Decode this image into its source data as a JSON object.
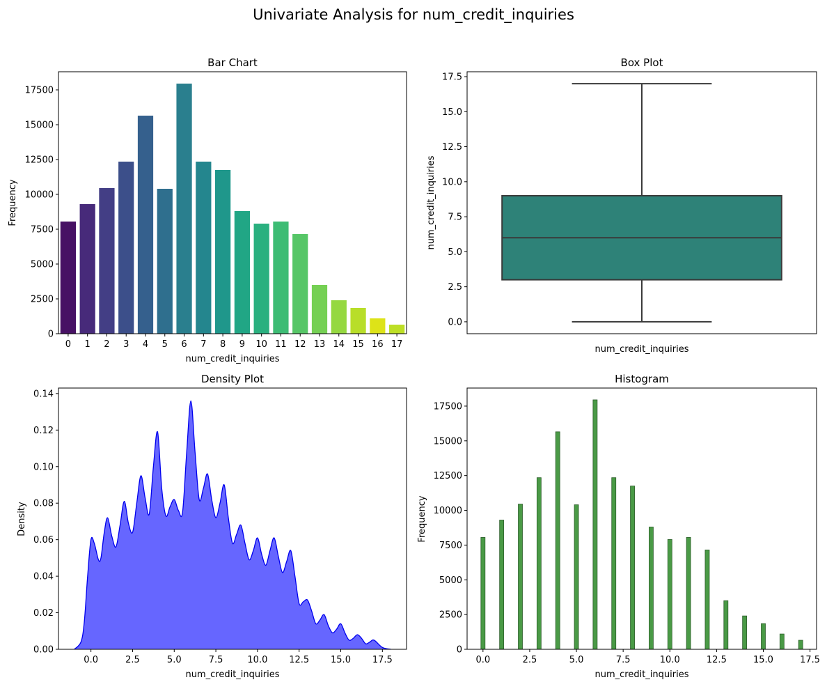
{
  "figure": {
    "suptitle": "Univariate Analysis for num_credit_inquiries"
  },
  "colors": {
    "viridis": [
      "#471164",
      "#472a7a",
      "#433e85",
      "#3c4f8a",
      "#35608d",
      "#2f6f8e",
      "#2a7f8e",
      "#24868e",
      "#1f978b",
      "#21a685",
      "#2ab07f",
      "#3dbc74",
      "#56c667",
      "#75d054",
      "#95d840",
      "#b8de29",
      "#dde318",
      "#bddf26"
    ],
    "box_fill": "#2e8278",
    "box_edge": "#3a3a3a",
    "density_fill": "#6666ff",
    "density_line": "#0000ee",
    "hist_fill": "#4a9a46",
    "hist_edge": "#2d5e2b"
  },
  "chart_data": [
    {
      "id": "bar",
      "type": "bar",
      "title": "Bar Chart",
      "xlabel": "num_credit_inquiries",
      "ylabel": "Frequency",
      "categories": [
        "0",
        "1",
        "2",
        "3",
        "4",
        "5",
        "6",
        "7",
        "8",
        "9",
        "10",
        "11",
        "12",
        "13",
        "14",
        "15",
        "16",
        "17"
      ],
      "values": [
        8050,
        9300,
        10450,
        12350,
        15650,
        10400,
        17950,
        12350,
        11750,
        8800,
        7900,
        8050,
        7150,
        3500,
        2400,
        1850,
        1100,
        650
      ],
      "ylim": [
        0,
        18800
      ],
      "yticks": [
        0,
        2500,
        5000,
        7500,
        10000,
        12500,
        15000,
        17500
      ]
    },
    {
      "id": "box",
      "type": "box",
      "title": "Box Plot",
      "xlabel": "num_credit_inquiries",
      "ylabel": "num_credit_inquiries",
      "min": 0,
      "q1": 3,
      "median": 6,
      "q3": 9,
      "max": 17,
      "ylim": [
        -0.85,
        17.85
      ],
      "yticks": [
        0.0,
        2.5,
        5.0,
        7.5,
        10.0,
        12.5,
        15.0,
        17.5
      ]
    },
    {
      "id": "density",
      "type": "area",
      "title": "Density Plot",
      "xlabel": "num_credit_inquiries",
      "ylabel": "Density",
      "x": [
        -1,
        -0.6,
        -0.4,
        -0.2,
        0,
        0.2,
        0.45,
        0.6,
        0.8,
        1,
        1.25,
        1.5,
        1.75,
        2,
        2.25,
        2.5,
        2.75,
        3,
        3.25,
        3.5,
        3.75,
        4,
        4.25,
        4.5,
        4.75,
        5,
        5.25,
        5.5,
        5.75,
        6,
        6.25,
        6.5,
        6.75,
        7,
        7.25,
        7.5,
        7.75,
        8,
        8.25,
        8.5,
        8.75,
        9,
        9.25,
        9.5,
        9.75,
        10,
        10.25,
        10.5,
        10.75,
        11,
        11.25,
        11.5,
        11.75,
        12,
        12.25,
        12.5,
        12.75,
        13,
        13.25,
        13.5,
        13.75,
        14,
        14.25,
        14.5,
        14.75,
        15,
        15.25,
        15.5,
        15.75,
        16,
        16.25,
        16.5,
        16.75,
        17,
        17.5,
        18
      ],
      "y": [
        0,
        0.004,
        0.015,
        0.04,
        0.06,
        0.058,
        0.049,
        0.05,
        0.064,
        0.072,
        0.062,
        0.056,
        0.068,
        0.081,
        0.069,
        0.064,
        0.08,
        0.095,
        0.083,
        0.074,
        0.1,
        0.119,
        0.088,
        0.073,
        0.078,
        0.082,
        0.076,
        0.075,
        0.108,
        0.136,
        0.108,
        0.082,
        0.088,
        0.096,
        0.082,
        0.072,
        0.08,
        0.09,
        0.072,
        0.058,
        0.063,
        0.068,
        0.058,
        0.049,
        0.054,
        0.061,
        0.052,
        0.046,
        0.054,
        0.061,
        0.051,
        0.042,
        0.048,
        0.054,
        0.04,
        0.025,
        0.026,
        0.027,
        0.021,
        0.014,
        0.016,
        0.019,
        0.013,
        0.009,
        0.011,
        0.014,
        0.009,
        0.005,
        0.006,
        0.008,
        0.006,
        0.003,
        0.004,
        0.005,
        0.001,
        0
      ],
      "xlim": [
        -1.95,
        18.95
      ],
      "ylim": [
        0,
        0.143
      ],
      "xticks": [
        0.0,
        2.5,
        5.0,
        7.5,
        10.0,
        12.5,
        15.0,
        17.5
      ],
      "yticks": [
        0.0,
        0.02,
        0.04,
        0.06,
        0.08,
        0.1,
        0.12,
        0.14
      ]
    },
    {
      "id": "hist",
      "type": "bar",
      "title": "Histogram",
      "xlabel": "num_credit_inquiries",
      "ylabel": "Frequency",
      "x": [
        0,
        1,
        2,
        3,
        4,
        5,
        6,
        7,
        8,
        9,
        10,
        11,
        12,
        13,
        14,
        15,
        16,
        17
      ],
      "values": [
        8050,
        9300,
        10450,
        12350,
        15650,
        10400,
        17950,
        12350,
        11750,
        8800,
        7900,
        8050,
        7150,
        3500,
        2400,
        1850,
        1100,
        650
      ],
      "xlim": [
        -0.85,
        17.85
      ],
      "ylim": [
        0,
        18800
      ],
      "xticks": [
        0.0,
        2.5,
        5.0,
        7.5,
        10.0,
        12.5,
        15.0,
        17.5
      ],
      "yticks": [
        0,
        2500,
        5000,
        7500,
        10000,
        12500,
        15000,
        17500
      ]
    }
  ]
}
